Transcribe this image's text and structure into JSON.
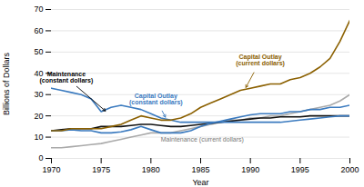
{
  "chart_data": {
    "type": "line",
    "x": [
      1970,
      1971,
      1972,
      1973,
      1974,
      1975,
      1976,
      1977,
      1978,
      1979,
      1980,
      1981,
      1982,
      1983,
      1984,
      1985,
      1986,
      1987,
      1988,
      1989,
      1990,
      1991,
      1992,
      1993,
      1994,
      1995,
      1996,
      1997,
      1998,
      1999,
      2000
    ],
    "xlim": [
      1970,
      2000
    ],
    "xticks": [
      1970,
      1975,
      1980,
      1985,
      1990,
      1995,
      2000
    ],
    "ylim": [
      0,
      70
    ],
    "yticks": [
      0,
      10,
      20,
      30,
      40,
      50,
      60,
      70
    ],
    "xlabel": "Year",
    "ylabel": "Billions of Dollars",
    "grid": true,
    "series": [
      {
        "color": "#aaaaaa",
        "values": [
          5,
          5,
          5.5,
          6,
          6.5,
          7,
          8,
          9,
          10,
          11,
          12,
          12,
          12,
          13,
          14,
          15,
          16,
          17,
          18,
          18,
          19,
          19,
          20,
          20,
          21,
          22,
          23,
          24,
          25,
          27,
          30
        ]
      },
      {
        "color": "#111111",
        "values": [
          13,
          13.5,
          14,
          14,
          14,
          15,
          15,
          15,
          15.5,
          16,
          16,
          15.5,
          15,
          15,
          15.5,
          16,
          16.5,
          17,
          17.5,
          18,
          18.5,
          19,
          19,
          19.5,
          19.5,
          19.5,
          20,
          20,
          20,
          20,
          20
        ]
      },
      {
        "color": "#3a7abf",
        "values": [
          13,
          13,
          13.5,
          13,
          13,
          12,
          12,
          12.5,
          13.5,
          15,
          13.5,
          12,
          12,
          12,
          13,
          15,
          16.5,
          17.5,
          18.5,
          19.5,
          20.5,
          21,
          21,
          21,
          22,
          22,
          23,
          23,
          24,
          24,
          25
        ]
      },
      {
        "color": "#3a7abf",
        "values": [
          33,
          32,
          31,
          30,
          28,
          22,
          24,
          25,
          24,
          23,
          21,
          19,
          18,
          17,
          17,
          17,
          17,
          17,
          17,
          17,
          17,
          17,
          17,
          17,
          17.5,
          18,
          18.5,
          19,
          19.5,
          20,
          20
        ]
      },
      {
        "color": "#8B6000",
        "values": [
          13,
          13,
          14,
          14,
          14,
          14,
          15,
          16,
          18,
          20,
          19,
          18,
          18,
          19,
          21,
          24,
          26,
          28,
          30,
          32,
          33,
          34,
          35,
          35,
          37,
          38,
          40,
          43,
          47,
          55,
          65
        ]
      }
    ],
    "annotations": [
      {
        "text": "Maintenance\n(constant dollars)",
        "x": 1975.5,
        "y": 22,
        "text_x": 1971.5,
        "text_y": 38,
        "color": "#000000"
      },
      {
        "text": "Capital Outlay\n(constant dollars)",
        "x": 1981.5,
        "y": 19,
        "text_x": 1980.5,
        "text_y": 28,
        "color": "#3a7abf"
      },
      {
        "text": "Capital Outlay\n(current dollars)",
        "x": 1989.5,
        "y": 33,
        "text_x": 1991.0,
        "text_y": 46,
        "color": "#8B6000"
      },
      {
        "text": "Maintenance (current dollars)",
        "x": 1981,
        "y": 9,
        "color": "#777777"
      }
    ]
  }
}
